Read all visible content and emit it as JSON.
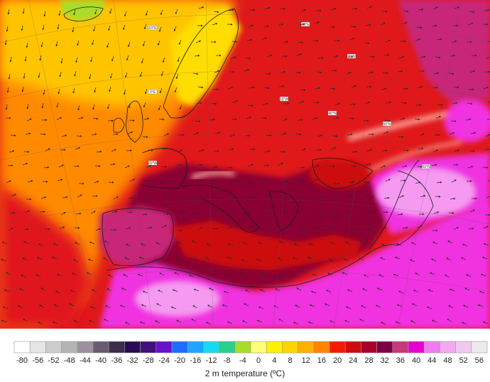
{
  "legend": {
    "title": "2 m temperature (ºC)",
    "ticks": [
      "-80",
      "-56",
      "-52",
      "-48",
      "-44",
      "-40",
      "-36",
      "-32",
      "-28",
      "-24",
      "-20",
      "-16",
      "-12",
      "-8",
      "-4",
      "0",
      "4",
      "8",
      "12",
      "16",
      "20",
      "24",
      "28",
      "32",
      "36",
      "40",
      "44",
      "48",
      "52",
      "56"
    ],
    "colors": [
      "#ffffff",
      "#e6e6e6",
      "#cdcdcd",
      "#b4b4b4",
      "#9d8fa0",
      "#6b5a72",
      "#3d2c4a",
      "#2a0a54",
      "#43107a",
      "#6a10c8",
      "#1d6dff",
      "#1ea6ff",
      "#18d9f2",
      "#29d08a",
      "#a8dd2a",
      "#ffff7a",
      "#fff200",
      "#ffd400",
      "#ffb100",
      "#ff8400",
      "#f21b00",
      "#cd0d0d",
      "#a8002a",
      "#7a0046",
      "#c8387a",
      "#e600d2",
      "#f07af0",
      "#f5a8f0",
      "#f0c8f0",
      "#ebebeb"
    ]
  },
  "map": {
    "coord_labels": [
      "20°E",
      "10°E",
      "0°E",
      "10°W",
      "20°W",
      "30°N",
      "40°N",
      "50°N",
      "60°N"
    ],
    "colors": {
      "sea": "#e0181a",
      "ocean_north": "#ffc400",
      "ocean_mid": "#ff8a00",
      "hot": "#8a0030",
      "very_hot": "#c82878",
      "desert": "#f032e0",
      "desert_light": "#f59af0",
      "cool": "#ffdd00",
      "cold": "#a8dd2a",
      "mountain": "#ffb0a0",
      "coast": "#1a1a1a",
      "arrow": "#2a2a2a"
    }
  }
}
